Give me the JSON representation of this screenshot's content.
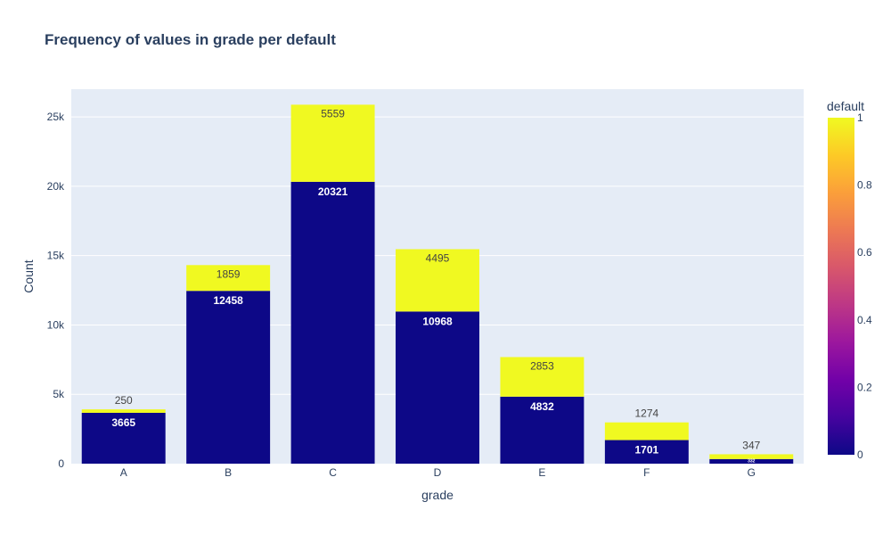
{
  "chart_data": {
    "type": "bar",
    "barmode": "stack",
    "title": "Frequency of values in grade per default",
    "xlabel": "grade",
    "ylabel": "Count",
    "ylim": [
      0,
      27000
    ],
    "ytick_values": [
      0,
      5000,
      10000,
      15000,
      20000,
      25000
    ],
    "ytick_labels": [
      "0",
      "5k",
      "10k",
      "15k",
      "20k",
      "25k"
    ],
    "categories": [
      "A",
      "B",
      "C",
      "D",
      "E",
      "F",
      "G"
    ],
    "series": [
      {
        "default_value": 0,
        "color": "#0d0887",
        "values": [
          3665,
          12458,
          20321,
          10968,
          4832,
          1701,
          332
        ]
      },
      {
        "default_value": 1,
        "color": "#f0f921",
        "values": [
          250,
          1859,
          5559,
          4495,
          2853,
          1274,
          347
        ]
      }
    ],
    "colorbar": {
      "title": "default",
      "tick_values": [
        0,
        0.2,
        0.4,
        0.6,
        0.8,
        1
      ],
      "tick_labels": [
        "0",
        "0.2",
        "0.4",
        "0.6",
        "0.8",
        "1"
      ],
      "colorscale": [
        "#0d0887",
        "#46039f",
        "#7201a8",
        "#9c179e",
        "#bd3786",
        "#d8576b",
        "#ed7953",
        "#fb9f3a",
        "#fdca26",
        "#f0f921"
      ]
    },
    "plot_background": "#e5ecf6",
    "grid": true
  }
}
